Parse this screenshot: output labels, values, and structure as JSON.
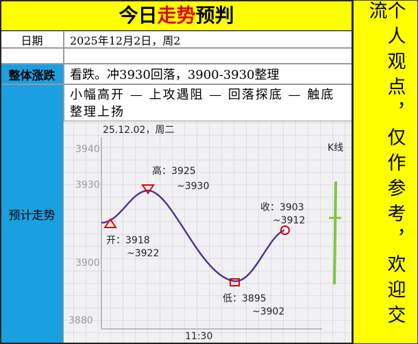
{
  "header": {
    "title_parts": [
      "今日",
      "走势",
      "预判"
    ]
  },
  "side_note": "个人观点，仅作参考，欢迎交流",
  "rows": {
    "date": {
      "label": "日期",
      "value": "2025年12月2日，周2"
    },
    "trend": {
      "label": "整体涨跌",
      "value": "看跌。冲3930回落，3900-3930整理"
    },
    "forecast": {
      "label": "预计走势",
      "value": "小幅高开 — 上攻遇阻 — 回落探底 — 触底整理上扬"
    }
  },
  "chart_notes": {
    "date": "25.12.02，周二",
    "y3940": "3940",
    "y3930": "3930",
    "y3900": "3900",
    "y3880": "3880",
    "kline": "K线",
    "high": [
      "高：3925",
      "~3930"
    ],
    "open": [
      "开：3918",
      "~3922"
    ],
    "close": [
      "收：3903",
      "~3912"
    ],
    "low": [
      "低：3895",
      "~3902"
    ],
    "time": "11:30"
  }
}
